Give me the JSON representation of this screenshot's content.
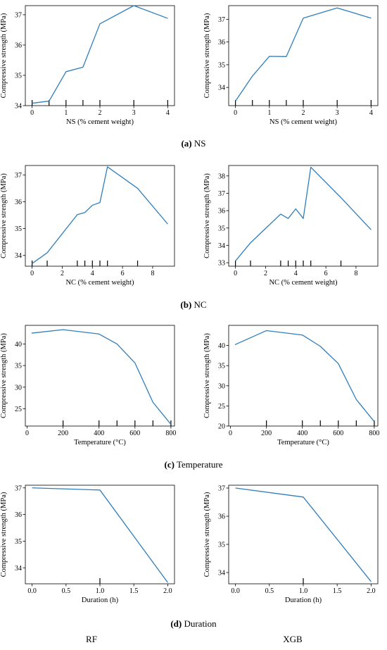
{
  "captions": [
    {
      "letter": "(a)",
      "text": "NS"
    },
    {
      "letter": "(b)",
      "text": "NC"
    },
    {
      "letter": "(c)",
      "text": "Temperature"
    },
    {
      "letter": "(d)",
      "text": "Duration"
    }
  ],
  "models": [
    "RF",
    "XGB"
  ],
  "style": {
    "line_color": "#2f7ebc",
    "axis_color": "#000000"
  },
  "chart_data": [
    {
      "type": "line",
      "row": 0,
      "col": 0,
      "xlabel": "NS (% cement weight)",
      "ylabel": "Compressive strength (MPa)",
      "xlim": [
        -0.2,
        4.2
      ],
      "ylim": [
        34.0,
        37.3
      ],
      "xticks": [
        0,
        1,
        2,
        3,
        4
      ],
      "xtick_labels": [
        "0",
        "1",
        "2",
        "3",
        "4"
      ],
      "yticks": [
        34,
        35,
        36,
        37
      ],
      "ytick_labels": [
        "34",
        "35",
        "36",
        "37"
      ],
      "x": [
        0,
        0.5,
        1,
        1.5,
        2,
        3,
        4
      ],
      "y": [
        34.08,
        34.15,
        35.12,
        35.27,
        36.7,
        37.3,
        36.88
      ],
      "rug": [
        0,
        0.5,
        1,
        1.5,
        2,
        3,
        4
      ]
    },
    {
      "type": "line",
      "row": 0,
      "col": 1,
      "xlabel": "NS (% cement weight)",
      "ylabel": "Compressive strength (MPa)",
      "xlim": [
        -0.2,
        4.2
      ],
      "ylim": [
        33.2,
        37.6
      ],
      "xticks": [
        0,
        1,
        2,
        3,
        4
      ],
      "xtick_labels": [
        "0",
        "1",
        "2",
        "3",
        "4"
      ],
      "yticks": [
        34,
        35,
        36,
        37
      ],
      "ytick_labels": [
        "34",
        "35",
        "36",
        "37"
      ],
      "x": [
        0,
        0.5,
        1,
        1.5,
        2,
        3,
        4
      ],
      "y": [
        33.4,
        34.5,
        35.37,
        35.36,
        37.05,
        37.5,
        37.05
      ],
      "rug": [
        0,
        0.5,
        1,
        1.5,
        2,
        3,
        4
      ]
    },
    {
      "type": "line",
      "row": 1,
      "col": 0,
      "xlabel": "NC (% cement weight)",
      "ylabel": "Compressive strength (MPa)",
      "xlim": [
        -0.45,
        9.45
      ],
      "ylim": [
        33.6,
        37.35
      ],
      "xticks": [
        0,
        2,
        4,
        6,
        8
      ],
      "xtick_labels": [
        "0",
        "2",
        "4",
        "6",
        "8"
      ],
      "yticks": [
        34,
        35,
        36,
        37
      ],
      "ytick_labels": [
        "34",
        "35",
        "36",
        "37"
      ],
      "x": [
        0,
        1,
        3,
        3.5,
        4,
        4.5,
        5,
        7,
        9
      ],
      "y": [
        33.7,
        34.1,
        35.52,
        35.6,
        35.87,
        35.97,
        37.3,
        36.5,
        35.17
      ],
      "rug": [
        0,
        1,
        3,
        3.5,
        4,
        4.5,
        5,
        7
      ]
    },
    {
      "type": "line",
      "row": 1,
      "col": 1,
      "xlabel": "NC (% cement weight)",
      "ylabel": "Compressive strength (MPa)",
      "xlim": [
        -0.45,
        9.45
      ],
      "ylim": [
        32.8,
        38.6
      ],
      "xticks": [
        0,
        2,
        4,
        6,
        8
      ],
      "xtick_labels": [
        "0",
        "2",
        "4",
        "6",
        "8"
      ],
      "yticks": [
        33,
        34,
        35,
        36,
        37,
        38
      ],
      "ytick_labels": [
        "33",
        "34",
        "35",
        "36",
        "37",
        "38"
      ],
      "x": [
        0,
        1,
        3,
        3.5,
        4,
        4.5,
        5,
        7,
        9
      ],
      "y": [
        33.1,
        34.15,
        35.8,
        35.55,
        36.1,
        35.55,
        38.5,
        36.75,
        34.9
      ],
      "rug": [
        0,
        1,
        3,
        3.5,
        4,
        4.5,
        5,
        7
      ]
    },
    {
      "type": "line",
      "row": 2,
      "col": 0,
      "xlabel": "Temperature (°C)",
      "ylabel": "Compressive strength (MPa)",
      "xlim": [
        -10,
        820
      ],
      "ylim": [
        21.0,
        44.3
      ],
      "xticks": [
        0,
        200,
        400,
        600,
        800
      ],
      "xtick_labels": [
        "0",
        "200",
        "400",
        "600",
        "800"
      ],
      "yticks": [
        25,
        30,
        35,
        40
      ],
      "ytick_labels": [
        "25",
        "30",
        "35",
        "40"
      ],
      "x": [
        25,
        200,
        400,
        500,
        600,
        700,
        800
      ],
      "y": [
        42.5,
        43.3,
        42.3,
        40.0,
        35.6,
        26.5,
        21.4
      ],
      "rug": [
        200,
        400,
        500,
        600,
        700,
        800
      ]
    },
    {
      "type": "line",
      "row": 2,
      "col": 1,
      "xlabel": "Temperature (°C)",
      "ylabel": "Compressive strength (MPa)",
      "xlim": [
        -10,
        820
      ],
      "ylim": [
        20.0,
        45.0
      ],
      "xticks": [
        0,
        200,
        400,
        600,
        800
      ],
      "xtick_labels": [
        "0",
        "200",
        "400",
        "600",
        "800"
      ],
      "yticks": [
        20,
        25,
        30,
        35,
        40
      ],
      "ytick_labels": [
        "20",
        "25",
        "30",
        "35",
        "40"
      ],
      "x": [
        25,
        200,
        400,
        500,
        600,
        700,
        800
      ],
      "y": [
        40.2,
        43.7,
        42.6,
        39.8,
        35.5,
        26.6,
        21.1
      ],
      "rug": [
        200,
        400,
        500,
        600,
        700,
        800
      ]
    },
    {
      "type": "line",
      "row": 3,
      "col": 0,
      "xlabel": "Duration (h)",
      "ylabel": "Compressive strength (MPa)",
      "xlim": [
        -0.1,
        2.1
      ],
      "ylim": [
        33.4,
        37.1
      ],
      "xticks": [
        0,
        0.5,
        1,
        1.5,
        2
      ],
      "xtick_labels": [
        "0.0",
        "0.5",
        "1.0",
        "1.5",
        "2.0"
      ],
      "yticks": [
        34,
        35,
        36,
        37
      ],
      "ytick_labels": [
        "34",
        "35",
        "36",
        "37"
      ],
      "x": [
        0,
        1,
        2
      ],
      "y": [
        37.0,
        36.92,
        33.45
      ],
      "rug": [
        1
      ]
    },
    {
      "type": "line",
      "row": 3,
      "col": 1,
      "xlabel": "Duration (h)",
      "ylabel": "Compressive strength (MPa)",
      "xlim": [
        -0.1,
        2.1
      ],
      "ylim": [
        33.6,
        37.1
      ],
      "xticks": [
        0,
        0.5,
        1,
        1.5,
        2
      ],
      "xtick_labels": [
        "0.0",
        "0.5",
        "1.0",
        "1.5",
        "2.0"
      ],
      "yticks": [
        34,
        35,
        36,
        37
      ],
      "ytick_labels": [
        "34",
        "35",
        "36",
        "37"
      ],
      "x": [
        0,
        1,
        2
      ],
      "y": [
        37.0,
        36.68,
        33.68
      ],
      "rug": [
        1
      ]
    }
  ]
}
